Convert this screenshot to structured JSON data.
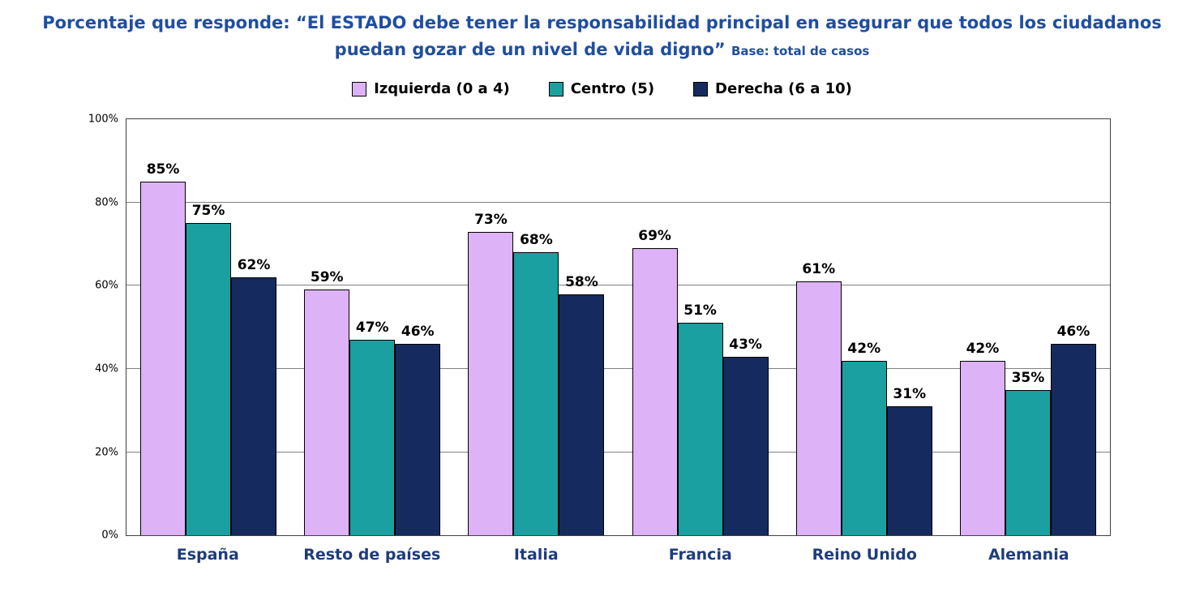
{
  "chart_data": {
    "type": "bar",
    "title": "Porcentaje que responde: “El ESTADO debe tener la responsabilidad principal en asegurar que todos los ciudadanos puedan gozar de un nivel de vida digno”",
    "subtitle": "Base: total de casos",
    "categories": [
      "España",
      "Resto de países",
      "Italia",
      "Francia",
      "Reino Unido",
      "Alemania"
    ],
    "series": [
      {
        "name": "Izquierda (0 a 4)",
        "color": "#DDB2F7",
        "values": [
          85,
          59,
          73,
          69,
          61,
          42
        ]
      },
      {
        "name": "Centro (5)",
        "color": "#1AA0A1",
        "values": [
          75,
          47,
          68,
          51,
          42,
          35
        ]
      },
      {
        "name": "Derecha (6 a 10)",
        "color": "#152A5E",
        "values": [
          62,
          46,
          58,
          43,
          31,
          46
        ]
      }
    ],
    "ylim": [
      0,
      100
    ],
    "ytick_interval": 20,
    "yticks": [
      "0%",
      "20%",
      "40%",
      "60%",
      "80%",
      "100%"
    ],
    "grid": true,
    "legend_position": "top",
    "value_label_format": "{v}%"
  },
  "colors": {
    "title_blue": "#1F4EA0",
    "category_blue": "#1E3C7B",
    "gridline": "#808080",
    "bar_border": "#000000",
    "value_label": "#000000"
  }
}
